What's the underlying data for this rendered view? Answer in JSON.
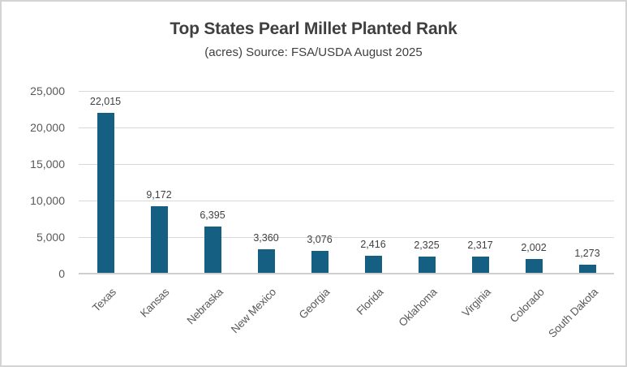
{
  "chart": {
    "title": "Top States Pearl Millet Planted Rank",
    "subtitle": "(acres) Source: FSA/USDA August 2025"
  },
  "chart_data": {
    "type": "bar",
    "title": "Top States Pearl Millet Planted Rank",
    "subtitle": "(acres) Source: FSA/USDA August 2025",
    "categories": [
      "Texas",
      "Kansas",
      "Nebraska",
      "New Mexico",
      "Georgia",
      "Florida",
      "Oklahoma",
      "Virginia",
      "Colorado",
      "South Dakota"
    ],
    "values": [
      22015,
      9172,
      6395,
      3360,
      3076,
      2416,
      2325,
      2317,
      2002,
      1273
    ],
    "value_labels": [
      "22,015",
      "9,172",
      "6,395",
      "3,360",
      "3,076",
      "2,416",
      "2,325",
      "2,317",
      "2,002",
      "1,273"
    ],
    "xlabel": "",
    "ylabel": "",
    "ylim": [
      0,
      25000
    ],
    "yticks": [
      {
        "v": 0,
        "label": "0"
      },
      {
        "v": 5000,
        "label": "5,000"
      },
      {
        "v": 10000,
        "label": "10,000"
      },
      {
        "v": 15000,
        "label": "15,000"
      },
      {
        "v": 20000,
        "label": "20,000"
      },
      {
        "v": 25000,
        "label": "25,000"
      }
    ],
    "grid": true,
    "legend": "none",
    "colors": {
      "bar": "#156082",
      "gridline": "#d9d9d9",
      "axis_line": "#cfcfcf",
      "title_text": "#3f3f3f",
      "tick_text": "#595959",
      "value_text": "#404040"
    }
  }
}
